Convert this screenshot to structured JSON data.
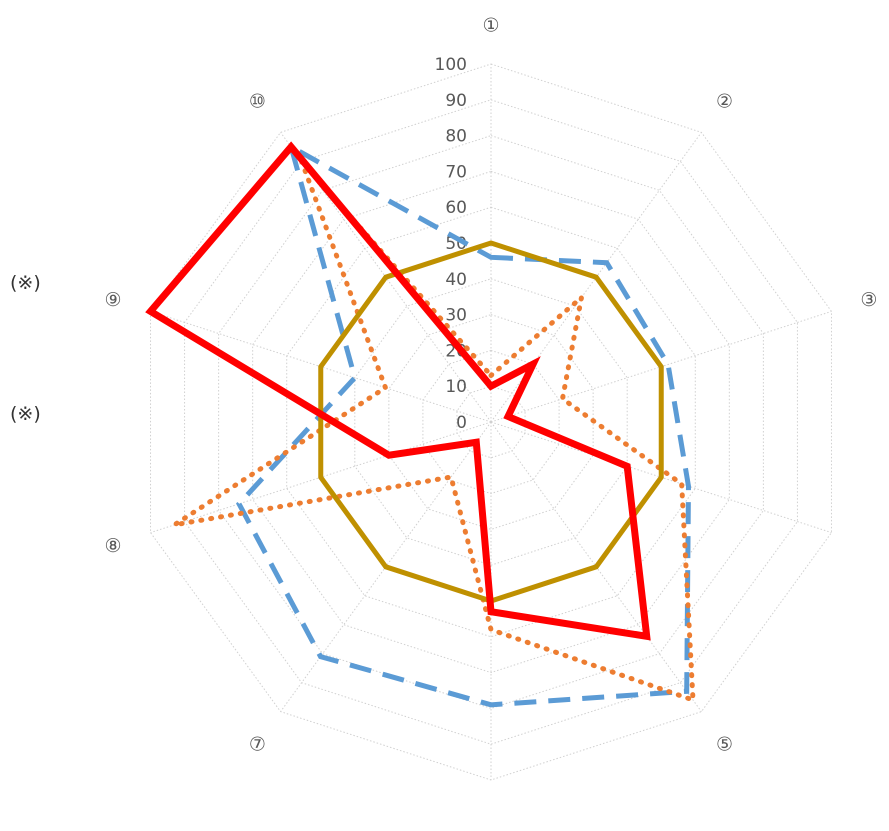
{
  "chart_data": {
    "type": "radar",
    "title": "",
    "axes": [
      "①",
      "②",
      "③",
      "",
      "⑤",
      "",
      "⑦",
      "⑧",
      "⑨",
      "⑩"
    ],
    "r_ticks": [
      "0",
      "10",
      "20",
      "30",
      "40",
      "50",
      "60",
      "70",
      "80",
      "90",
      "100"
    ],
    "r_range": [
      0,
      100
    ],
    "grid": true,
    "series": [
      {
        "color": "#5b9bd5",
        "style": "dashed",
        "values": [
          46,
          55,
          52,
          58,
          93,
          79,
          81,
          74,
          40,
          95
        ]
      },
      {
        "color": "#ed7d31",
        "style": "dotted",
        "values": [
          13,
          43,
          21,
          56,
          96,
          58,
          19,
          93,
          31,
          90
        ]
      },
      {
        "color": "#bf9000",
        "style": "solid",
        "values": [
          50,
          50,
          50,
          50,
          50,
          50,
          50,
          50,
          50,
          50
        ]
      },
      {
        "color": "#ff0000",
        "style": "solid-thick",
        "values": [
          10,
          20,
          5,
          40,
          74,
          53,
          7,
          30,
          100,
          95
        ]
      }
    ]
  },
  "notes": {
    "note1": "(※)",
    "note2": "(※)"
  }
}
